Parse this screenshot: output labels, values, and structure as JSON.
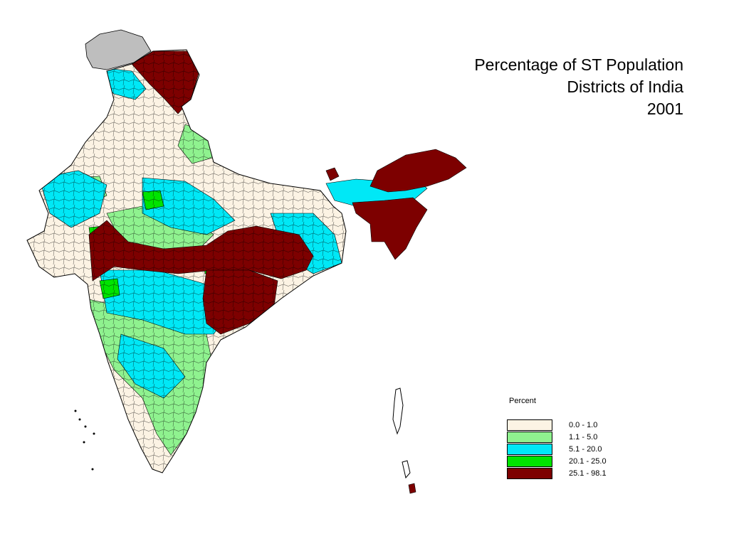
{
  "title": {
    "line1": "Percentage of ST Population",
    "line2": "Districts of India",
    "line3": "2001"
  },
  "legend": {
    "title": "Percent",
    "items": [
      {
        "label": "0.0 - 1.0",
        "color": "#fcf3e4"
      },
      {
        "label": "1.1 - 5.0",
        "color": "#8ff28f"
      },
      {
        "label": "5.1 - 20.0",
        "color": "#00e8f6"
      },
      {
        "label": "20.1 - 25.0",
        "color": "#00e400"
      },
      {
        "label": "25.1 - 98.1",
        "color": "#7d0000"
      }
    ]
  },
  "map": {
    "no_data_color": "#bebebe",
    "border_color": "#000000"
  }
}
